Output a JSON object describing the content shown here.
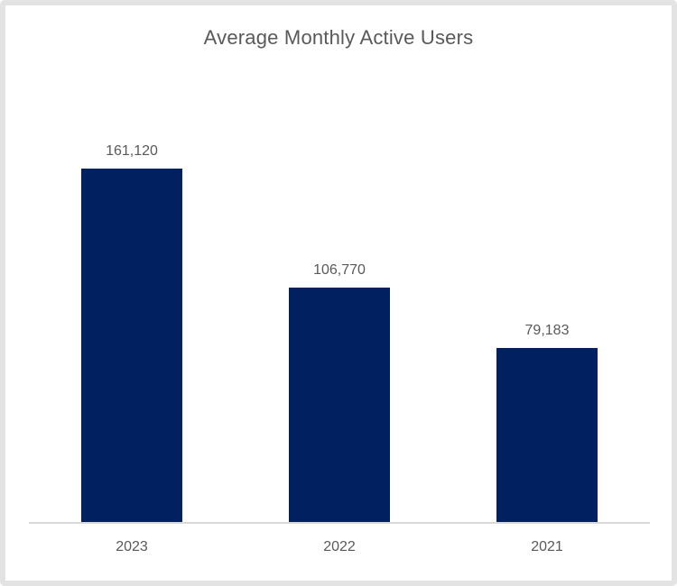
{
  "window": {
    "background_color": "#ffffff",
    "frame_border_color": "#e3e3e3"
  },
  "chart_data": {
    "type": "bar",
    "title": "Average Monthly Active Users",
    "categories": [
      "2023",
      "2022",
      "2021"
    ],
    "values": [
      161120,
      106770,
      79183
    ],
    "value_labels": [
      "161,120",
      "106,770",
      "79,183"
    ],
    "xlabel": "",
    "ylabel": "",
    "ylim": [
      0,
      180000
    ],
    "grid": false,
    "legend": false,
    "bar_color": "#002060",
    "title_color": "#595959",
    "label_color": "#595959",
    "axis_line_color": "#d9d9d9"
  }
}
